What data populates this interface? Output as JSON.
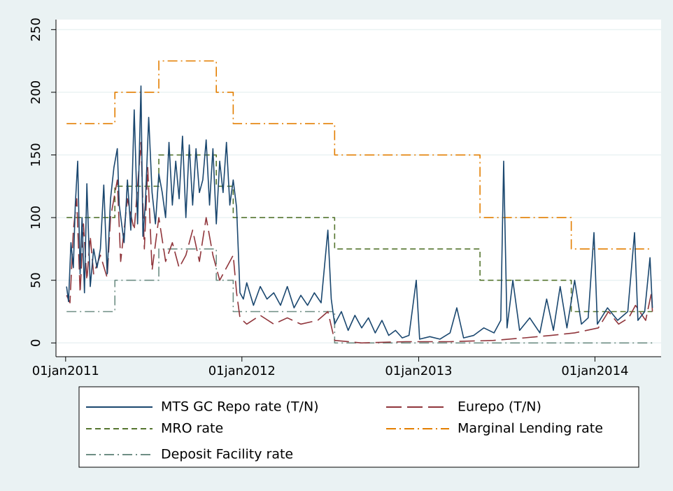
{
  "chart_data": {
    "type": "line",
    "xlim": [
      "2010-12-12",
      "2014-05-18"
    ],
    "xticks": [
      {
        "value": "2011-01-01",
        "label": "01jan2011"
      },
      {
        "value": "2012-01-01",
        "label": "01jan2012"
      },
      {
        "value": "2013-01-01",
        "label": "01jan2013"
      },
      {
        "value": "2014-01-01",
        "label": "01jan2014"
      }
    ],
    "ylim": [
      -11,
      258
    ],
    "yticks": [
      0,
      50,
      100,
      150,
      200,
      250
    ],
    "grid": true,
    "legend": "bottom",
    "series": [
      {
        "name": "MTS GC Repo rate (T/N)",
        "color": "#1a476f",
        "line_style": "solid",
        "x": [
          "2011-01-03",
          "2011-01-07",
          "2011-01-12",
          "2011-01-17",
          "2011-01-21",
          "2011-01-26",
          "2011-01-31",
          "2011-02-04",
          "2011-02-09",
          "2011-02-14",
          "2011-02-21",
          "2011-02-28",
          "2011-03-07",
          "2011-03-14",
          "2011-03-21",
          "2011-03-28",
          "2011-04-04",
          "2011-04-11",
          "2011-04-18",
          "2011-04-22",
          "2011-05-02",
          "2011-05-09",
          "2011-05-16",
          "2011-05-23",
          "2011-05-30",
          "2011-06-06",
          "2011-06-10",
          "2011-06-15",
          "2011-06-22",
          "2011-06-29",
          "2011-07-06",
          "2011-07-13",
          "2011-07-20",
          "2011-07-27",
          "2011-08-03",
          "2011-08-10",
          "2011-08-17",
          "2011-08-24",
          "2011-08-31",
          "2011-09-07",
          "2011-09-14",
          "2011-09-21",
          "2011-09-28",
          "2011-10-05",
          "2011-10-12",
          "2011-10-19",
          "2011-10-26",
          "2011-11-02",
          "2011-11-09",
          "2011-11-16",
          "2011-11-23",
          "2011-11-30",
          "2011-12-07",
          "2011-12-14",
          "2011-12-21",
          "2011-12-28",
          "2012-01-04",
          "2012-01-11",
          "2012-01-25",
          "2012-02-08",
          "2012-02-22",
          "2012-03-07",
          "2012-03-21",
          "2012-04-04",
          "2012-04-18",
          "2012-05-02",
          "2012-05-16",
          "2012-05-30",
          "2012-06-13",
          "2012-06-27",
          "2012-07-04",
          "2012-07-11",
          "2012-07-25",
          "2012-08-08",
          "2012-08-22",
          "2012-09-05",
          "2012-09-19",
          "2012-10-03",
          "2012-10-17",
          "2012-10-31",
          "2012-11-14",
          "2012-11-28",
          "2012-12-12",
          "2012-12-27",
          "2013-01-03",
          "2013-01-24",
          "2013-02-14",
          "2013-03-07",
          "2013-03-21",
          "2013-04-04",
          "2013-04-25",
          "2013-05-16",
          "2013-06-06",
          "2013-06-20",
          "2013-06-26",
          "2013-07-03",
          "2013-07-15",
          "2013-07-29",
          "2013-08-19",
          "2013-09-09",
          "2013-09-23",
          "2013-10-07",
          "2013-10-21",
          "2013-11-04",
          "2013-11-20",
          "2013-12-04",
          "2013-12-18",
          "2013-12-30",
          "2014-01-06",
          "2014-01-27",
          "2014-02-17",
          "2014-03-10",
          "2014-03-24",
          "2014-03-31",
          "2014-04-14",
          "2014-04-25",
          "2014-04-30"
        ],
        "values": [
          45,
          33,
          80,
          60,
          110,
          145,
          55,
          100,
          40,
          127,
          45,
          75,
          60,
          75,
          126,
          55,
          115,
          140,
          155,
          110,
          80,
          130,
          90,
          186,
          95,
          205,
          85,
          110,
          180,
          120,
          95,
          135,
          120,
          100,
          160,
          110,
          145,
          115,
          165,
          100,
          158,
          110,
          155,
          120,
          130,
          162,
          110,
          155,
          95,
          145,
          120,
          160,
          110,
          130,
          108,
          40,
          35,
          48,
          30,
          45,
          35,
          40,
          30,
          45,
          28,
          38,
          30,
          40,
          32,
          90,
          35,
          15,
          25,
          10,
          22,
          12,
          20,
          8,
          18,
          6,
          10,
          4,
          6,
          50,
          3,
          5,
          3,
          8,
          28,
          4,
          6,
          12,
          8,
          18,
          145,
          12,
          50,
          10,
          20,
          8,
          35,
          10,
          45,
          12,
          50,
          15,
          20,
          88,
          15,
          28,
          18,
          25,
          88,
          18,
          25,
          68,
          28
        ]
      },
      {
        "name": "Eurepo (T/N)",
        "color": "#90353b",
        "line_style": "long-dash",
        "x": [
          "2011-01-03",
          "2011-01-10",
          "2011-01-17",
          "2011-01-24",
          "2011-01-31",
          "2011-02-07",
          "2011-02-14",
          "2011-02-21",
          "2011-02-28",
          "2011-03-14",
          "2011-03-28",
          "2011-04-04",
          "2011-04-18",
          "2011-04-25",
          "2011-05-09",
          "2011-05-23",
          "2011-06-06",
          "2011-06-13",
          "2011-06-20",
          "2011-06-29",
          "2011-07-13",
          "2011-07-27",
          "2011-08-10",
          "2011-08-24",
          "2011-09-07",
          "2011-09-21",
          "2011-10-05",
          "2011-10-19",
          "2011-11-02",
          "2011-11-16",
          "2011-11-30",
          "2011-12-14",
          "2011-12-21",
          "2011-12-28",
          "2012-01-11",
          "2012-02-08",
          "2012-03-07",
          "2012-04-04",
          "2012-05-02",
          "2012-06-06",
          "2012-06-27",
          "2012-07-11",
          "2012-09-05",
          "2012-12-05",
          "2013-03-06",
          "2013-06-05",
          "2013-08-07",
          "2013-10-02",
          "2013-11-20",
          "2014-01-08",
          "2014-01-29",
          "2014-02-19",
          "2014-03-12",
          "2014-03-26",
          "2014-04-16",
          "2014-04-28",
          "2014-04-30"
        ],
        "values": [
          38,
          32,
          90,
          115,
          40,
          95,
          50,
          85,
          55,
          70,
          52,
          100,
          130,
          65,
          115,
          90,
          160,
          75,
          140,
          58,
          100,
          65,
          80,
          60,
          70,
          90,
          65,
          100,
          70,
          50,
          60,
          70,
          40,
          20,
          15,
          22,
          15,
          20,
          15,
          18,
          25,
          2,
          0,
          1,
          1,
          2,
          4,
          6,
          8,
          12,
          25,
          15,
          20,
          30,
          18,
          40,
          25
        ]
      },
      {
        "name": "MRO rate",
        "color": "#55752f",
        "line_style": "dash",
        "x": [
          "2011-01-03",
          "2011-04-13",
          "2011-04-13",
          "2011-07-13",
          "2011-07-13",
          "2011-11-09",
          "2011-11-09",
          "2011-12-14",
          "2011-12-14",
          "2012-07-11",
          "2012-07-11",
          "2013-05-08",
          "2013-05-08",
          "2013-11-13",
          "2013-11-13",
          "2014-04-30"
        ],
        "values": [
          100,
          100,
          125,
          125,
          150,
          150,
          125,
          125,
          100,
          100,
          75,
          75,
          50,
          50,
          25,
          25
        ]
      },
      {
        "name": "Marginal Lending rate",
        "color": "#e37e00",
        "line_style": "dash-dot",
        "x": [
          "2011-01-03",
          "2011-04-13",
          "2011-04-13",
          "2011-07-13",
          "2011-07-13",
          "2011-11-09",
          "2011-11-09",
          "2011-12-14",
          "2011-12-14",
          "2012-07-11",
          "2012-07-11",
          "2013-05-08",
          "2013-05-08",
          "2013-11-13",
          "2013-11-13",
          "2014-04-30"
        ],
        "values": [
          175,
          175,
          200,
          200,
          225,
          225,
          200,
          200,
          175,
          175,
          150,
          150,
          100,
          100,
          75,
          75
        ]
      },
      {
        "name": "Deposit Facility rate",
        "color": "#6e8e84",
        "line_style": "dash-dot",
        "x": [
          "2011-01-03",
          "2011-04-13",
          "2011-04-13",
          "2011-07-13",
          "2011-07-13",
          "2011-11-09",
          "2011-11-09",
          "2011-12-14",
          "2011-12-14",
          "2012-07-11",
          "2012-07-11",
          "2013-05-08",
          "2013-05-08",
          "2013-11-13",
          "2013-11-13",
          "2014-04-30"
        ],
        "values": [
          25,
          25,
          50,
          50,
          75,
          75,
          50,
          50,
          25,
          25,
          0,
          0,
          0,
          0,
          0,
          0
        ]
      }
    ]
  }
}
